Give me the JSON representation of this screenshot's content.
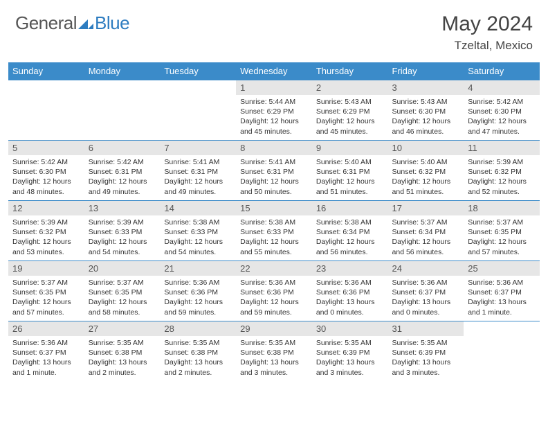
{
  "brand": {
    "part1": "General",
    "part2": "Blue"
  },
  "title": "May 2024",
  "location": "Tzeltal, Mexico",
  "colors": {
    "header_bg": "#3b8bc9",
    "header_fg": "#ffffff",
    "daynum_bg": "#e6e6e6",
    "border": "#3b8bc9",
    "brand_blue": "#2d7cc0",
    "text": "#333333"
  },
  "layout": {
    "cols": 7,
    "rows": 5,
    "first_weekday_index": 3
  },
  "weekdays": [
    "Sunday",
    "Monday",
    "Tuesday",
    "Wednesday",
    "Thursday",
    "Friday",
    "Saturday"
  ],
  "days": [
    {
      "n": 1,
      "sr": "5:44 AM",
      "ss": "6:29 PM",
      "dl": "12 hours and 45 minutes."
    },
    {
      "n": 2,
      "sr": "5:43 AM",
      "ss": "6:29 PM",
      "dl": "12 hours and 45 minutes."
    },
    {
      "n": 3,
      "sr": "5:43 AM",
      "ss": "6:30 PM",
      "dl": "12 hours and 46 minutes."
    },
    {
      "n": 4,
      "sr": "5:42 AM",
      "ss": "6:30 PM",
      "dl": "12 hours and 47 minutes."
    },
    {
      "n": 5,
      "sr": "5:42 AM",
      "ss": "6:30 PM",
      "dl": "12 hours and 48 minutes."
    },
    {
      "n": 6,
      "sr": "5:42 AM",
      "ss": "6:31 PM",
      "dl": "12 hours and 49 minutes."
    },
    {
      "n": 7,
      "sr": "5:41 AM",
      "ss": "6:31 PM",
      "dl": "12 hours and 49 minutes."
    },
    {
      "n": 8,
      "sr": "5:41 AM",
      "ss": "6:31 PM",
      "dl": "12 hours and 50 minutes."
    },
    {
      "n": 9,
      "sr": "5:40 AM",
      "ss": "6:31 PM",
      "dl": "12 hours and 51 minutes."
    },
    {
      "n": 10,
      "sr": "5:40 AM",
      "ss": "6:32 PM",
      "dl": "12 hours and 51 minutes."
    },
    {
      "n": 11,
      "sr": "5:39 AM",
      "ss": "6:32 PM",
      "dl": "12 hours and 52 minutes."
    },
    {
      "n": 12,
      "sr": "5:39 AM",
      "ss": "6:32 PM",
      "dl": "12 hours and 53 minutes."
    },
    {
      "n": 13,
      "sr": "5:39 AM",
      "ss": "6:33 PM",
      "dl": "12 hours and 54 minutes."
    },
    {
      "n": 14,
      "sr": "5:38 AM",
      "ss": "6:33 PM",
      "dl": "12 hours and 54 minutes."
    },
    {
      "n": 15,
      "sr": "5:38 AM",
      "ss": "6:33 PM",
      "dl": "12 hours and 55 minutes."
    },
    {
      "n": 16,
      "sr": "5:38 AM",
      "ss": "6:34 PM",
      "dl": "12 hours and 56 minutes."
    },
    {
      "n": 17,
      "sr": "5:37 AM",
      "ss": "6:34 PM",
      "dl": "12 hours and 56 minutes."
    },
    {
      "n": 18,
      "sr": "5:37 AM",
      "ss": "6:35 PM",
      "dl": "12 hours and 57 minutes."
    },
    {
      "n": 19,
      "sr": "5:37 AM",
      "ss": "6:35 PM",
      "dl": "12 hours and 57 minutes."
    },
    {
      "n": 20,
      "sr": "5:37 AM",
      "ss": "6:35 PM",
      "dl": "12 hours and 58 minutes."
    },
    {
      "n": 21,
      "sr": "5:36 AM",
      "ss": "6:36 PM",
      "dl": "12 hours and 59 minutes."
    },
    {
      "n": 22,
      "sr": "5:36 AM",
      "ss": "6:36 PM",
      "dl": "12 hours and 59 minutes."
    },
    {
      "n": 23,
      "sr": "5:36 AM",
      "ss": "6:36 PM",
      "dl": "13 hours and 0 minutes."
    },
    {
      "n": 24,
      "sr": "5:36 AM",
      "ss": "6:37 PM",
      "dl": "13 hours and 0 minutes."
    },
    {
      "n": 25,
      "sr": "5:36 AM",
      "ss": "6:37 PM",
      "dl": "13 hours and 1 minute."
    },
    {
      "n": 26,
      "sr": "5:36 AM",
      "ss": "6:37 PM",
      "dl": "13 hours and 1 minute."
    },
    {
      "n": 27,
      "sr": "5:35 AM",
      "ss": "6:38 PM",
      "dl": "13 hours and 2 minutes."
    },
    {
      "n": 28,
      "sr": "5:35 AM",
      "ss": "6:38 PM",
      "dl": "13 hours and 2 minutes."
    },
    {
      "n": 29,
      "sr": "5:35 AM",
      "ss": "6:38 PM",
      "dl": "13 hours and 3 minutes."
    },
    {
      "n": 30,
      "sr": "5:35 AM",
      "ss": "6:39 PM",
      "dl": "13 hours and 3 minutes."
    },
    {
      "n": 31,
      "sr": "5:35 AM",
      "ss": "6:39 PM",
      "dl": "13 hours and 3 minutes."
    }
  ],
  "labels": {
    "sunrise": "Sunrise:",
    "sunset": "Sunset:",
    "daylight": "Daylight:"
  }
}
